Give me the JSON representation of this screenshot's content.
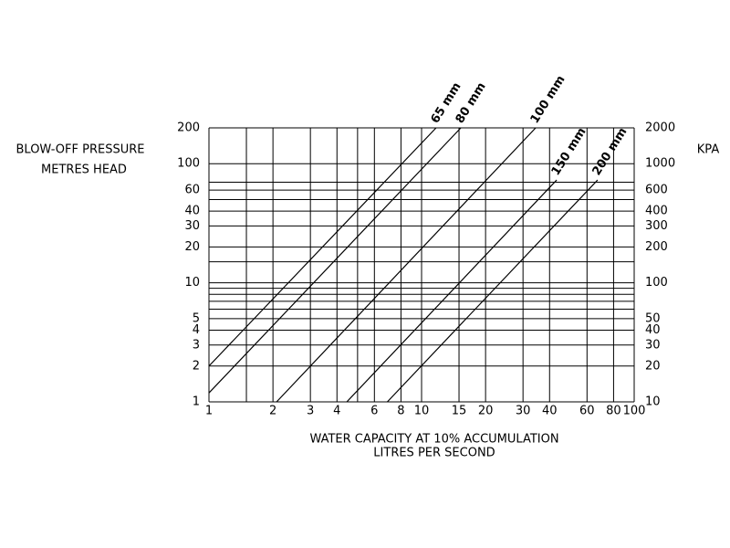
{
  "chart_data": {
    "type": "line",
    "y_label": [
      "BLOW-OFF PRESSURE",
      "METRES HEAD"
    ],
    "y2_label": "KPA",
    "x_label": [
      "WATER CAPACITY AT 10% ACCUMULATION",
      "LITRES PER SECOND"
    ],
    "xscale": "log",
    "yscale": "log",
    "xlim": [
      1,
      100
    ],
    "ylim": [
      1,
      200
    ],
    "y2lim": [
      10,
      2000
    ],
    "xticks": [
      1,
      2,
      3,
      4,
      6,
      8,
      10,
      15,
      20,
      30,
      40,
      60,
      80,
      100
    ],
    "yticks": [
      1,
      2,
      3,
      4,
      5,
      10,
      20,
      30,
      40,
      60,
      100,
      200
    ],
    "y2ticks": [
      10,
      20,
      30,
      40,
      50,
      100,
      200,
      300,
      400,
      600,
      1000,
      2000
    ],
    "xgrid": [
      1,
      1.5,
      2,
      3,
      4,
      5,
      6,
      8,
      10,
      15,
      20,
      30,
      40,
      60,
      80,
      100
    ],
    "ygrid": [
      1,
      2,
      3,
      4,
      5,
      6,
      7,
      8,
      9,
      10,
      15,
      20,
      30,
      40,
      50,
      60,
      70,
      100,
      200
    ],
    "series": [
      {
        "name": "65 mm",
        "color": "#000000",
        "x": [
          1,
          11.7
        ],
        "values": [
          2,
          200
        ]
      },
      {
        "name": "80 mm",
        "color": "#000000",
        "x": [
          1,
          15.3
        ],
        "values": [
          1.19,
          200
        ]
      },
      {
        "name": "100 mm",
        "color": "#000000",
        "x": [
          2.08,
          34.4
        ],
        "values": [
          1,
          200
        ]
      },
      {
        "name": "150 mm",
        "color": "#000000",
        "x": [
          4.45,
          43.2
        ],
        "values": [
          1,
          73
        ]
      },
      {
        "name": "200 mm",
        "color": "#000000",
        "x": [
          6.9,
          67.3
        ],
        "values": [
          1,
          73
        ]
      }
    ]
  }
}
